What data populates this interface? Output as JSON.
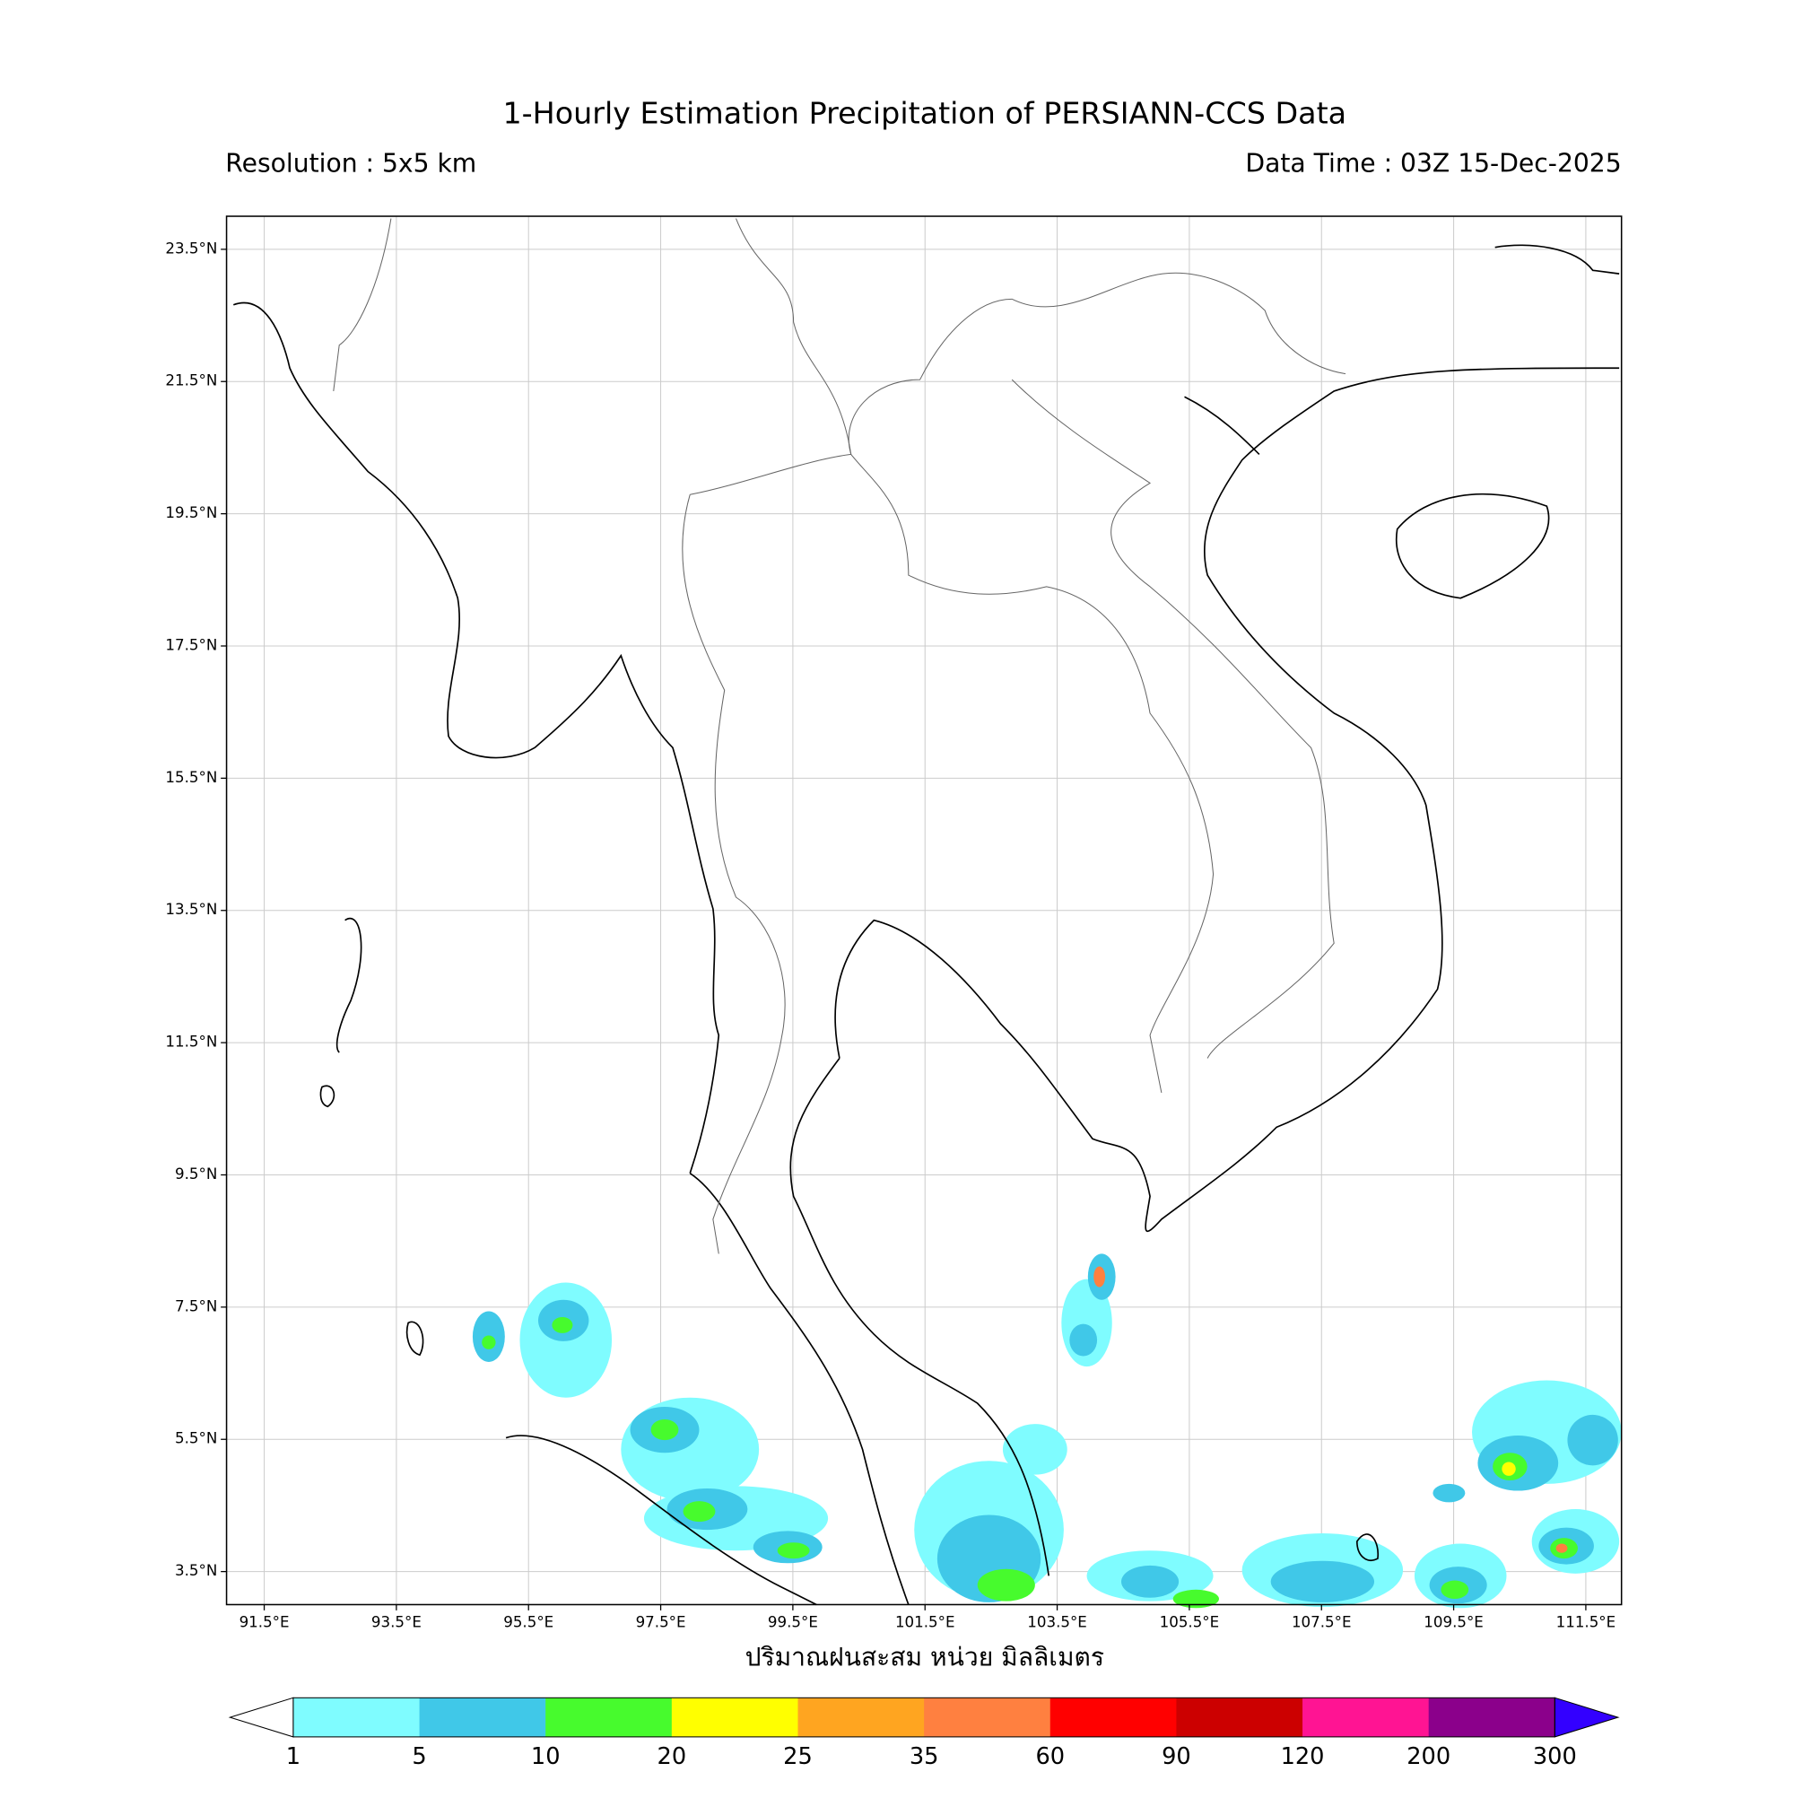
{
  "title": "1-Hourly Estimation Precipitation of PERSIANN-CCS Data",
  "resolution": "Resolution : 5x5 km",
  "data_time": "Data Time : 03Z 15-Dec-2025",
  "map": {
    "lonlim": [
      90.93,
      112.04
    ],
    "latlim": [
      3.0,
      24.0
    ],
    "lon_ticks": [
      {
        "value": 91.5,
        "label": "91.5°E"
      },
      {
        "value": 93.5,
        "label": "93.5°E"
      },
      {
        "value": 95.5,
        "label": "95.5°E"
      },
      {
        "value": 97.5,
        "label": "97.5°E"
      },
      {
        "value": 99.5,
        "label": "99.5°E"
      },
      {
        "value": 101.5,
        "label": "101.5°E"
      },
      {
        "value": 103.5,
        "label": "103.5°E"
      },
      {
        "value": 105.5,
        "label": "105.5°E"
      },
      {
        "value": 107.5,
        "label": "107.5°E"
      },
      {
        "value": 109.5,
        "label": "109.5°E"
      },
      {
        "value": 111.5,
        "label": "111.5°E"
      }
    ],
    "lat_ticks": [
      {
        "value": 3.5,
        "label": "3.5°N"
      },
      {
        "value": 5.5,
        "label": "5.5°N"
      },
      {
        "value": 7.5,
        "label": "7.5°N"
      },
      {
        "value": 9.5,
        "label": "9.5°N"
      },
      {
        "value": 11.5,
        "label": "11.5°N"
      },
      {
        "value": 13.5,
        "label": "13.5°N"
      },
      {
        "value": 15.5,
        "label": "15.5°N"
      },
      {
        "value": 17.5,
        "label": "17.5°N"
      },
      {
        "value": 19.5,
        "label": "19.5°N"
      },
      {
        "value": 21.5,
        "label": "21.5°N"
      },
      {
        "value": 23.5,
        "label": "23.5°N"
      }
    ],
    "grid": true
  },
  "xlabel": "ปริมาณฝนสะสม หน่วย มิลลิเมตร",
  "colorbar": {
    "levels": [
      1,
      5,
      10,
      20,
      25,
      35,
      60,
      90,
      120,
      200,
      300
    ],
    "colors": [
      "#ffffff",
      "#7ffcff",
      "#40c8e8",
      "#47fb2d",
      "#ffff00",
      "#ffa520",
      "#ff8040",
      "#ff0000",
      "#cc0000",
      "#ff1493",
      "#8b008b",
      "#3300ff"
    ]
  }
}
